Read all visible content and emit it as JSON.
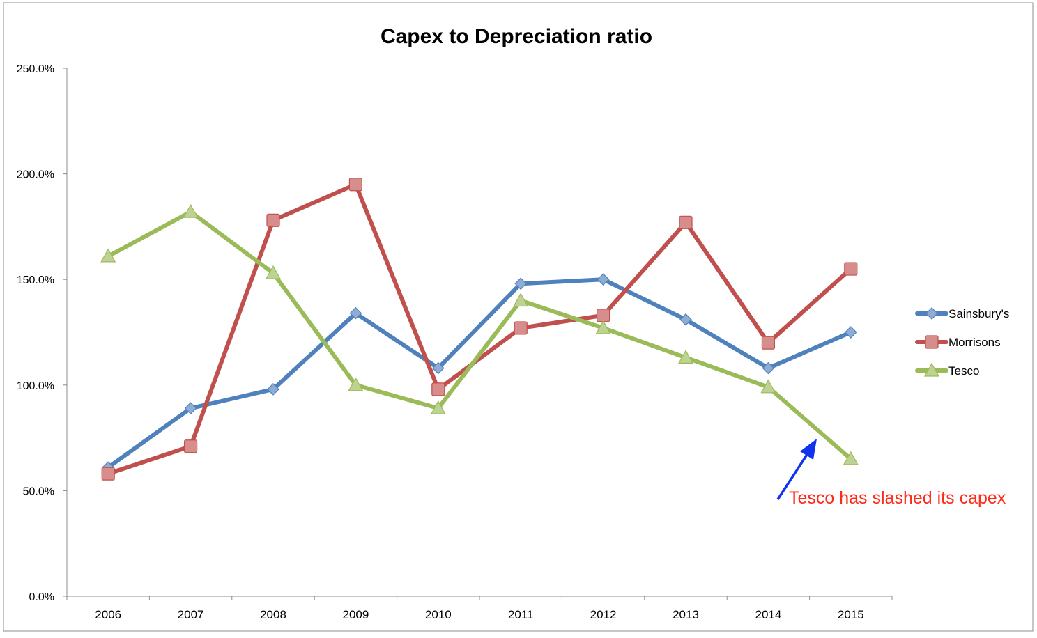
{
  "chart_data": {
    "type": "line",
    "title": "Capex to Depreciation ratio",
    "xlabel": "",
    "ylabel": "",
    "categories": [
      "2006",
      "2007",
      "2008",
      "2009",
      "2010",
      "2011",
      "2012",
      "2013",
      "2014",
      "2015"
    ],
    "ylim": [
      0,
      250
    ],
    "yticks": [
      0,
      50,
      100,
      150,
      200,
      250
    ],
    "ytick_labels": [
      "0.0%",
      "50.0%",
      "100.0%",
      "150.0%",
      "200.0%",
      "250.0%"
    ],
    "grid": false,
    "legend_position": "right",
    "series": [
      {
        "name": "Sainsbury's",
        "color": "#4f81bd",
        "marker": "diamond",
        "values": [
          61,
          89,
          98,
          134,
          108,
          148,
          150,
          131,
          108,
          125
        ]
      },
      {
        "name": "Morrisons",
        "color": "#c0504d",
        "marker": "square",
        "values": [
          58,
          71,
          178,
          195,
          98,
          127,
          133,
          177,
          120,
          155
        ]
      },
      {
        "name": "Tesco",
        "color": "#9bbb59",
        "marker": "triangle",
        "values": [
          161,
          182,
          153,
          100,
          89,
          140,
          127,
          113,
          99,
          65
        ]
      }
    ],
    "annotation": {
      "text": "Tesco has slashed its capex",
      "color": "#ff2a1a",
      "arrow_color": "#1133ee"
    }
  }
}
